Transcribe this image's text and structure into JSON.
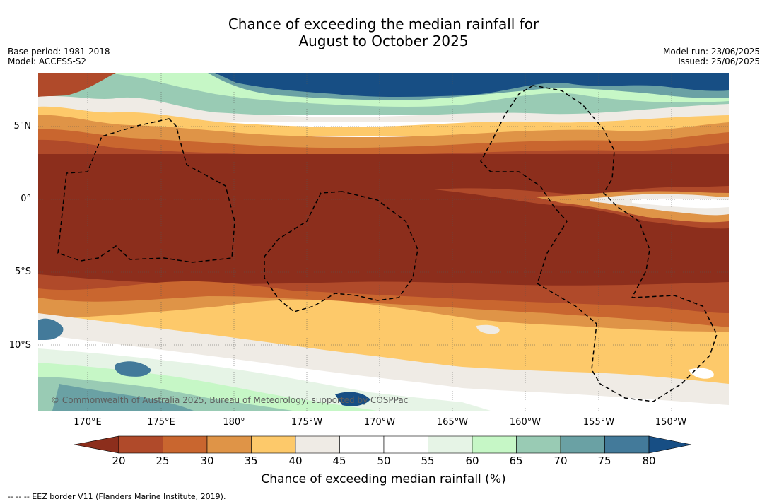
{
  "header": {
    "title_line1": "Chance of exceeding the median rainfall for",
    "title_line2": "August to October 2025",
    "base_period": "Base period: 1981-2018",
    "model": "Model: ACCESS-S2",
    "model_run": "Model run: 23/06/2025",
    "issued": "Issued: 25/06/2025"
  },
  "map": {
    "credit": "© Commonwealth of Australia 2025, Bureau of Meteorology, supported by COSPPac",
    "lon_ticks": [
      "170°E",
      "175°E",
      "180°",
      "175°W",
      "170°W",
      "165°W",
      "160°W",
      "155°W",
      "150°W"
    ],
    "lat_ticks": [
      "5°N",
      "0°",
      "5°S",
      "10°S"
    ]
  },
  "colorbar": {
    "title": "Chance of exceeding median rainfall (%)",
    "levels": [
      "20",
      "25",
      "30",
      "35",
      "40",
      "45",
      "50",
      "55",
      "60",
      "65",
      "70",
      "75",
      "80"
    ],
    "colors": [
      "#8c2e1c",
      "#b04a2a",
      "#c9662f",
      "#df9447",
      "#fdc96a",
      "#efebe5",
      "#ffffff",
      "#ffffff",
      "#e6f4e6",
      "#c6f7c6",
      "#99cbb4",
      "#6aa1a4",
      "#437a9a",
      "#174e84"
    ]
  },
  "footnote": "--  --  -- EEZ border V11 (Flanders Marine Institute, 2019)."
}
